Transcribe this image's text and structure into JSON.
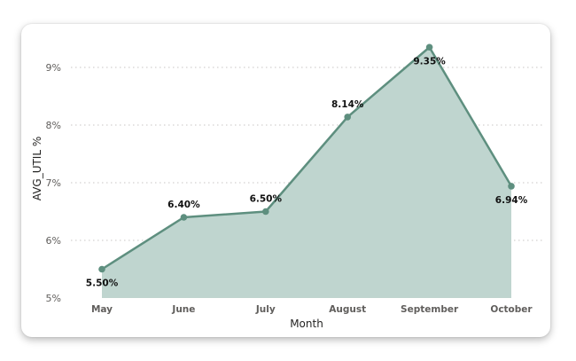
{
  "chart_data": {
    "type": "area",
    "categories": [
      "May",
      "June",
      "July",
      "August",
      "September",
      "October"
    ],
    "series": [
      {
        "values": [
          5.5,
          6.4,
          6.5,
          8.14,
          9.35,
          6.94
        ],
        "labels": [
          "5.50%",
          "6.40%",
          "6.50%",
          "8.14%",
          "9.35%",
          "6.94%"
        ],
        "line_color": "#5e8f7f",
        "fill_color": "#bfd5cf"
      }
    ],
    "xlabel": "Month",
    "ylabel": "AVG_UTIL %",
    "ylim": [
      5,
      9
    ],
    "yticks": [
      5,
      6,
      7,
      8,
      9
    ],
    "ytick_labels": [
      "5%",
      "6%",
      "7%",
      "8%",
      "9%"
    ],
    "grid": true,
    "legend": "none"
  }
}
